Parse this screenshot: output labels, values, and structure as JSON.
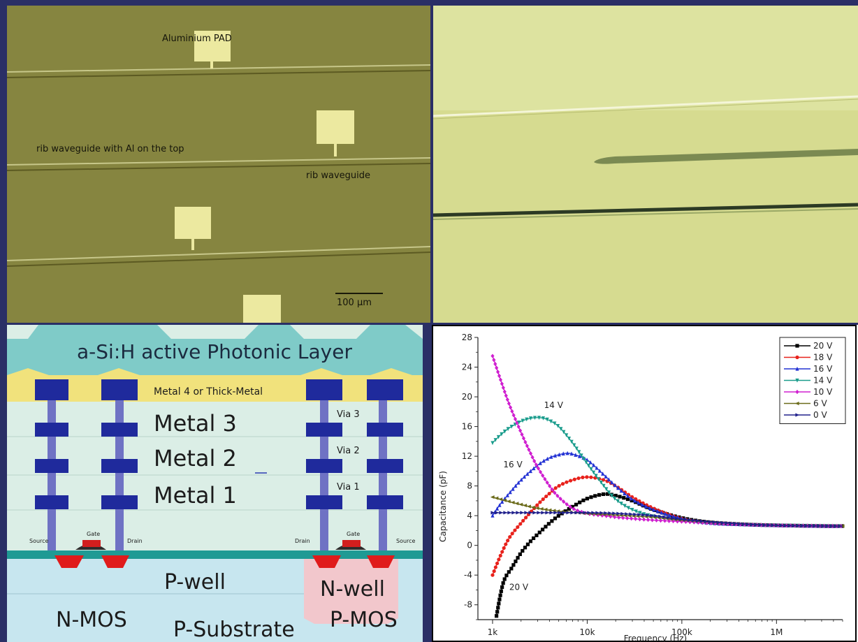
{
  "micrograph_top": {
    "labels": {
      "pad": "Aluminium PAD",
      "rib_al": "rib waveguide with Al on the top",
      "rib": "rib waveguide",
      "scale": "100 µm"
    }
  },
  "cross_section": {
    "layers": {
      "photonic": "a-Si:H active Photonic Layer",
      "metal4": "Metal 4 or Thick-Metal",
      "metal3": "Metal 3",
      "metal2": "Metal 2",
      "metal1": "Metal 1",
      "via3": "Via 3",
      "via2": "Via 2",
      "via1": "Via 1"
    },
    "devices": {
      "source_left": "Source",
      "gate_left": "Gate",
      "drain_left": "Drain",
      "drain_right": "Drain",
      "gate_right": "Gate",
      "source_right": "Source",
      "pwell": "P-well",
      "nwell": "N-well",
      "nmos": "N-MOS",
      "psub": "P-Substrate",
      "pmos": "P-MOS"
    },
    "colors": {
      "metal": "#1f2a9c",
      "via": "#6f72c4",
      "photonic": "#7cc9c6",
      "thick_metal": "#f1e27a",
      "diffusion": "#e01b1b",
      "nwell": "#f2c7cc"
    }
  },
  "chart_data": {
    "type": "line",
    "xlabel": "Frequency (Hz)",
    "ylabel": "Capacitance (pF)",
    "xscale": "log",
    "xlim": [
      700,
      5000000
    ],
    "ylim": [
      -10,
      28
    ],
    "x_ticks": [
      {
        "v": 1000,
        "label": "1k"
      },
      {
        "v": 10000,
        "label": "10k"
      },
      {
        "v": 100000,
        "label": "100k"
      },
      {
        "v": 1000000,
        "label": "1M"
      }
    ],
    "y_ticks": [
      -8,
      -4,
      0,
      4,
      8,
      12,
      16,
      20,
      24,
      28
    ],
    "legend_position": "top-right",
    "annotations": [
      {
        "text": "14 V",
        "x": 3500,
        "y": 18.5
      },
      {
        "text": "16 V",
        "x": 1300,
        "y": 10.5
      },
      {
        "text": "20 V",
        "x": 1500,
        "y": -6
      }
    ],
    "series": [
      {
        "name": "20 V",
        "color": "#000000",
        "marker": "square",
        "x": [
          1100,
          1300,
          1600,
          2000,
          2500,
          3000,
          4000,
          5000,
          7000,
          10000,
          15000,
          20000,
          30000,
          50000,
          100000,
          200000,
          500000,
          1000000,
          3000000,
          5000000
        ],
        "y": [
          -9.5,
          -5,
          -3,
          -1,
          0.5,
          1.5,
          3,
          4,
          5.2,
          6.3,
          6.9,
          6.7,
          6.0,
          4.8,
          3.7,
          3.1,
          2.8,
          2.7,
          2.6,
          2.6
        ]
      },
      {
        "name": "18 V",
        "color": "#e8221c",
        "marker": "circle",
        "x": [
          1000,
          1200,
          1500,
          2000,
          3000,
          4000,
          5000,
          7000,
          10000,
          15000,
          20000,
          30000,
          50000,
          100000,
          200000,
          500000,
          1000000,
          3000000,
          5000000
        ],
        "y": [
          -4,
          -1.5,
          1,
          3,
          5.5,
          7,
          8,
          8.8,
          9.2,
          8.8,
          8,
          6.5,
          5,
          3.6,
          3.0,
          2.8,
          2.7,
          2.6,
          2.6
        ]
      },
      {
        "name": "16 V",
        "color": "#2433d4",
        "marker": "triangle",
        "x": [
          1000,
          1200,
          1500,
          2000,
          3000,
          4000,
          5000,
          6000,
          7000,
          10000,
          15000,
          20000,
          30000,
          50000,
          100000,
          200000,
          500000,
          1000000,
          3000000,
          5000000
        ],
        "y": [
          4,
          5.5,
          7,
          8.8,
          10.8,
          11.8,
          12.2,
          12.4,
          12.3,
          11.5,
          9.5,
          8,
          6.2,
          4.8,
          3.6,
          3.0,
          2.8,
          2.7,
          2.6,
          2.6
        ]
      },
      {
        "name": "14 V",
        "color": "#1a9c8c",
        "marker": "triangle-down",
        "x": [
          1000,
          1200,
          1500,
          2000,
          2500,
          3000,
          3500,
          4000,
          5000,
          7000,
          10000,
          15000,
          20000,
          30000,
          50000,
          100000,
          200000,
          500000,
          1000000,
          5000000
        ],
        "y": [
          13.8,
          14.8,
          15.8,
          16.7,
          17.1,
          17.2,
          17.1,
          16.8,
          16,
          13.8,
          11,
          8,
          6.2,
          4.8,
          3.9,
          3.3,
          3.0,
          2.8,
          2.7,
          2.6
        ]
      },
      {
        "name": "10 V",
        "color": "#d020d0",
        "marker": "diamond",
        "x": [
          1000,
          1200,
          1500,
          2000,
          2500,
          3000,
          4000,
          5000,
          7000,
          10000,
          15000,
          20000,
          30000,
          50000,
          100000,
          300000,
          1000000,
          5000000
        ],
        "y": [
          25.5,
          22.5,
          19,
          15.2,
          12.5,
          10.5,
          8,
          6.5,
          5,
          4.3,
          4.0,
          3.8,
          3.6,
          3.4,
          3.2,
          2.9,
          2.7,
          2.6
        ]
      },
      {
        "name": "6 V",
        "color": "#6b6b1a",
        "marker": "left-triangle",
        "x": [
          1000,
          1500,
          2000,
          3000,
          5000,
          10000,
          20000,
          50000,
          100000,
          300000,
          1000000,
          5000000
        ],
        "y": [
          6.5,
          5.9,
          5.5,
          5.0,
          4.6,
          4.3,
          4.1,
          3.8,
          3.4,
          3.0,
          2.7,
          2.6
        ]
      },
      {
        "name": "0 V",
        "color": "#20208c",
        "marker": "right-triangle",
        "x": [
          1000,
          2000,
          5000,
          10000,
          20000,
          50000,
          100000,
          300000,
          1000000,
          5000000
        ],
        "y": [
          4.4,
          4.4,
          4.4,
          4.4,
          4.3,
          4.0,
          3.5,
          3.0,
          2.7,
          2.6
        ]
      }
    ]
  }
}
